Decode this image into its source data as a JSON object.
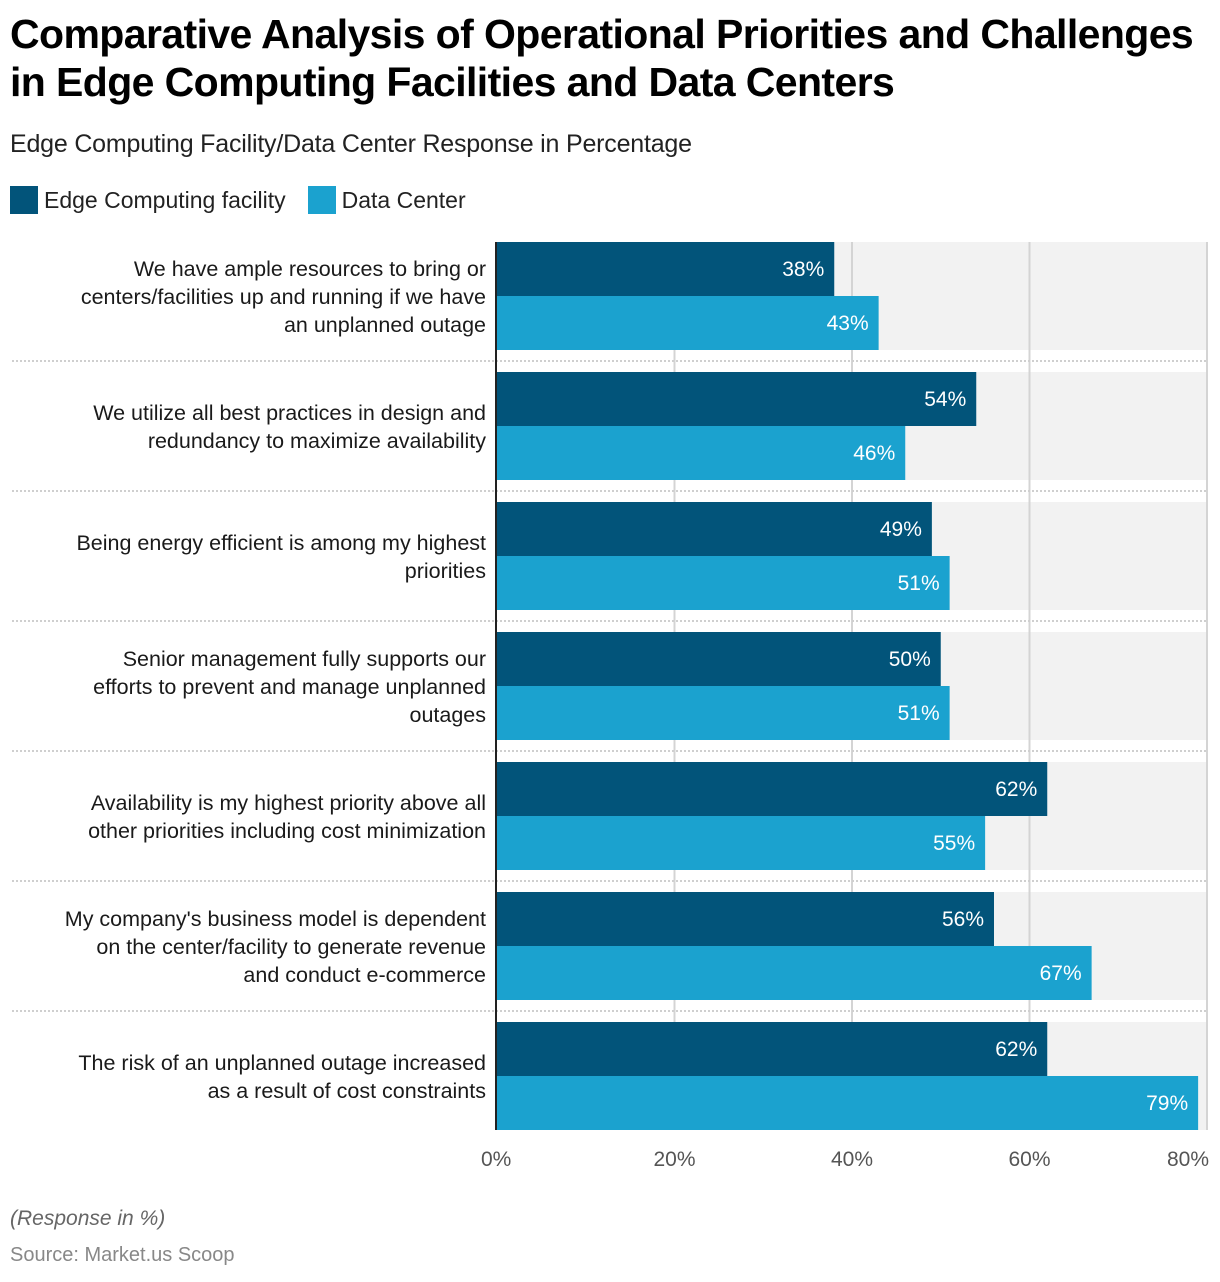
{
  "header": {
    "title": "Comparative Analysis of Operational Priorities and Challenges in Edge Computing Facilities and Data Centers",
    "subtitle": "Edge Computing Facility/Data Center Response in Percentage"
  },
  "legend": [
    {
      "label": "Edge Computing facility",
      "color": "#02547A"
    },
    {
      "label": "Data Center",
      "color": "#1BA2CF"
    }
  ],
  "footer": {
    "note": "(Response in %)",
    "source": "Source: Market.us Scoop"
  },
  "chart_data": {
    "type": "bar",
    "orientation": "horizontal",
    "title": "Comparative Analysis of Operational Priorities and Challenges in Edge Computing Facilities and Data Centers",
    "subtitle": "Edge Computing Facility/Data Center Response in Percentage",
    "xlabel": "",
    "ylabel": "",
    "xlim": [
      0,
      80
    ],
    "xticks": [
      0,
      20,
      40,
      60,
      80
    ],
    "xtick_labels": [
      "0%",
      "20%",
      "40%",
      "60%",
      "80%"
    ],
    "grid": true,
    "legend_position": "top-left",
    "categories": [
      "We have ample resources to bring or centers/facilities up and running if we have an unplanned outage",
      "We utilize all best practices in design and redundancy to maximize availability",
      "Being energy efficient is among my highest priorities",
      "Senior management fully supports our efforts to prevent and manage unplanned outages",
      "Availability is my highest priority above all other priorities including cost minimization",
      "My company's business model is dependent on the center/facility to generate revenue and conduct e-commerce",
      "The risk of an unplanned outage increased as a result of cost constraints"
    ],
    "category_lines": [
      [
        "We have ample resources to bring or",
        "centers/facilities up and running if we have",
        "an unplanned outage"
      ],
      [
        "We utilize all best practices in design and",
        "redundancy to maximize availability"
      ],
      [
        "Being energy efficient is among my highest",
        "priorities"
      ],
      [
        "Senior management fully supports our",
        "efforts to prevent and manage unplanned",
        "outages"
      ],
      [
        "Availability is my highest priority above all",
        "other priorities including cost minimization"
      ],
      [
        "My company's business model is dependent",
        "on the center/facility to generate revenue",
        "and conduct e-commerce"
      ],
      [
        "The risk of an unplanned outage increased",
        "as a result of cost constraints"
      ]
    ],
    "series": [
      {
        "name": "Edge Computing facility",
        "color": "#02547A",
        "values": [
          38,
          54,
          49,
          50,
          62,
          56,
          62
        ],
        "labels": [
          "38%",
          "54%",
          "49%",
          "50%",
          "62%",
          "56%",
          "62%"
        ]
      },
      {
        "name": "Data Center",
        "color": "#1BA2CF",
        "values": [
          43,
          46,
          51,
          51,
          55,
          67,
          79
        ],
        "labels": [
          "43%",
          "46%",
          "51%",
          "51%",
          "55%",
          "67%",
          "79%"
        ]
      }
    ]
  }
}
